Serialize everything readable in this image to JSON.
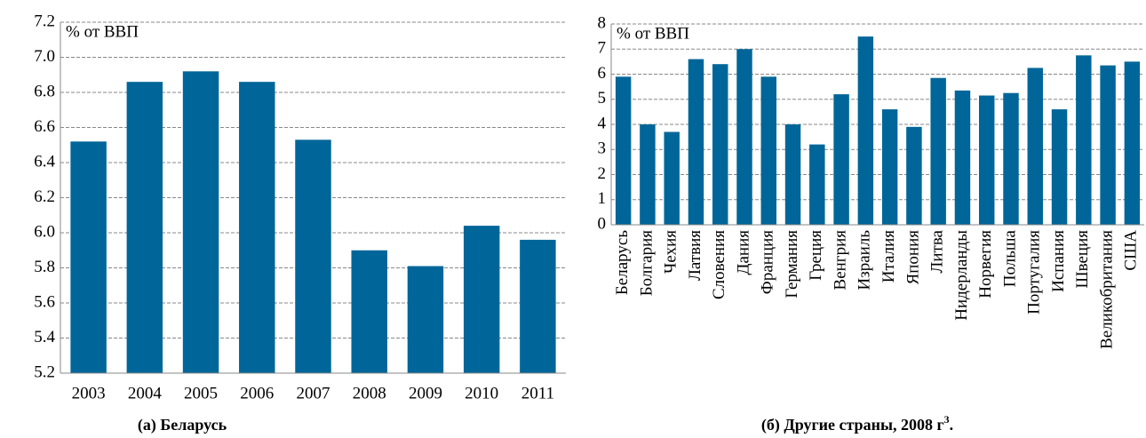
{
  "chart_data": [
    {
      "type": "bar",
      "ylabel": "% от ВВП",
      "caption": "(а) Беларусь",
      "categories": [
        "2003",
        "2004",
        "2005",
        "2006",
        "2007",
        "2008",
        "2009",
        "2010",
        "2011"
      ],
      "values": [
        6.52,
        6.86,
        6.92,
        6.86,
        6.53,
        5.9,
        5.81,
        6.04,
        5.96
      ],
      "color": "#006699",
      "ylim": [
        5.2,
        7.2
      ],
      "yticks": [
        5.2,
        5.4,
        5.6,
        5.8,
        {
          "value": 6,
          "label": "6.0"
        },
        6.2,
        6.4,
        6.6,
        6.8,
        {
          "value": 7,
          "label": "7.0"
        },
        7.2
      ],
      "grid": true
    },
    {
      "type": "bar",
      "ylabel": "% от ВВП",
      "caption": "(б) Другие страны, 2008 г",
      "caption_sup": "3",
      "caption_end": ".",
      "categories": [
        "Беларусь",
        "Болгария",
        "Чехия",
        "Латвия",
        "Словения",
        "Дания",
        "Франция",
        "Германия",
        "Греция",
        "Венгрия",
        "Израиль",
        "Италия",
        "Япония",
        "Литва",
        "Нидерланды",
        "Норвегия",
        "Польша",
        "Португалия",
        "Испания",
        "Швеция",
        "Великобритания",
        "США"
      ],
      "values": [
        5.9,
        4.0,
        3.7,
        6.6,
        6.4,
        7.0,
        5.9,
        4.0,
        3.2,
        5.2,
        7.5,
        4.6,
        3.9,
        5.85,
        5.35,
        5.15,
        5.25,
        6.25,
        4.6,
        6.75,
        6.35,
        6.5
      ],
      "color": "#006699",
      "ylim": [
        0,
        8
      ],
      "yticks": [
        0,
        1,
        2,
        3,
        4,
        5,
        6,
        7,
        8
      ],
      "grid": true
    }
  ]
}
